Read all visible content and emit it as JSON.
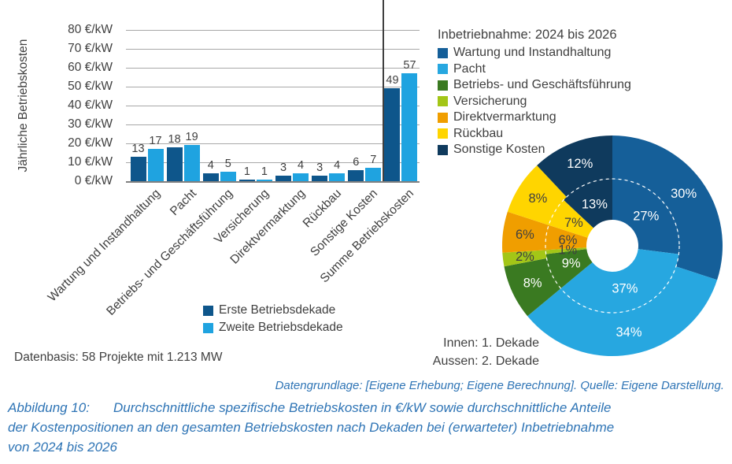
{
  "figure": {
    "caption_label": "Abbildung 10:",
    "caption_lines": [
      "Durchschnittliche spezifische Betriebskosten in €/kW sowie durchschnittliche Anteile",
      "der Kostenpositionen an den gesamten Betriebskosten nach Dekaden bei (erwarteter) Inbetriebnahme",
      "von 2024 bis 2026"
    ],
    "source": "Datengrundlage: [Eigene Erhebung; Eigene Berechnung]. Quelle: Eigene Darstellung.",
    "datenbasis": "Datenbasis: 58 Projekte mit 1.213 MW",
    "ring_note_inner": "Innen: 1. Dekade",
    "ring_note_outer": "Aussen: 2. Dekade",
    "caption_color": "#2e74b5",
    "text_color": "#404040"
  },
  "chart_data": [
    {
      "type": "bar",
      "title": "",
      "ylabel": "Jährliche Betriebskosten",
      "ylim": [
        0,
        80
      ],
      "ytick_step": 10,
      "yticks": [
        "0 €/kW",
        "10 €/kW",
        "20 €/kW",
        "30 €/kW",
        "40 €/kW",
        "50 €/kW",
        "60 €/kW",
        "70 €/kW",
        "80 €/kW"
      ],
      "grid": true,
      "legend_position": "below",
      "categories": [
        "Wartung und Instandhaltung",
        "Pacht",
        "Betriebs- und Geschäftsführung",
        "Versicherung",
        "Direktvermarktung",
        "Rückbau",
        "Sonstige Kosten",
        "Summe Betriebskosten"
      ],
      "series": [
        {
          "name": "Erste Betriebsdekade",
          "color": "#0e568b",
          "values": [
            13,
            18,
            4,
            1,
            3,
            3,
            6,
            49
          ]
        },
        {
          "name": "Zweite Betriebsdekade",
          "color": "#1fa3e0",
          "values": [
            17,
            19,
            5,
            1,
            4,
            4,
            7,
            57
          ]
        }
      ],
      "separator_before_category_index": 7
    },
    {
      "type": "pie",
      "subtype": "double-donut",
      "title": "Inbetriebnahme: 2024 bis 2026",
      "legend_position": "above",
      "categories": [
        "Wartung und Instandhaltung",
        "Pacht",
        "Betriebs- und Geschäftsführung",
        "Versicherung",
        "Direktvermarktung",
        "Rückbau",
        "Sonstige Kosten"
      ],
      "colors": [
        "#155f99",
        "#27a7e0",
        "#3a7a21",
        "#a3c617",
        "#f09e00",
        "#ffd500",
        "#0f3a5d"
      ],
      "label_text_dark": [
        false,
        false,
        false,
        true,
        true,
        true,
        false
      ],
      "label_suffix": "%",
      "rings": [
        {
          "name": "Innen: 1. Dekade",
          "values": [
            27,
            37,
            9,
            1,
            6,
            7,
            13
          ]
        },
        {
          "name": "Aussen: 2. Dekade",
          "values": [
            30,
            34,
            8,
            2,
            6,
            8,
            12
          ]
        }
      ]
    }
  ]
}
